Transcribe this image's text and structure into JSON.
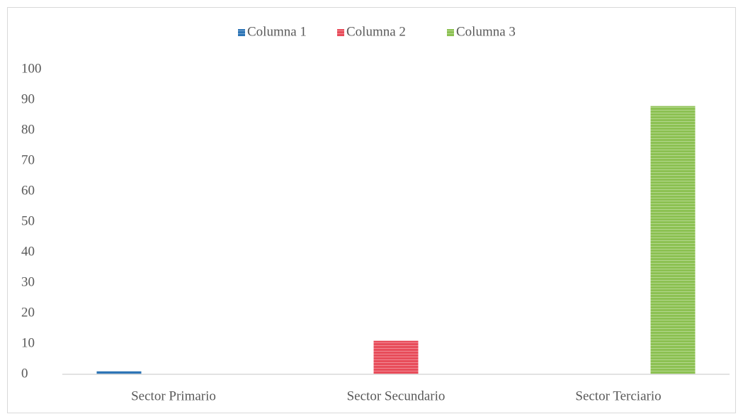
{
  "chart_data": {
    "type": "bar",
    "categories": [
      "Sector Primario",
      "Sector Secundario",
      "Sector Terciario"
    ],
    "series": [
      {
        "name": "Columna 1",
        "color": "#2e75b6",
        "values": [
          1,
          0,
          0
        ]
      },
      {
        "name": "Columna 2",
        "color": "#e84c5a",
        "values": [
          0,
          11,
          0
        ]
      },
      {
        "name": "Columna 3",
        "color": "#8cc152",
        "values": [
          0,
          0,
          88
        ]
      }
    ],
    "ylim": [
      0,
      100
    ],
    "yticks": [
      0,
      10,
      20,
      30,
      40,
      50,
      60,
      70,
      80,
      90,
      100
    ],
    "grid": false,
    "legend": "top"
  }
}
